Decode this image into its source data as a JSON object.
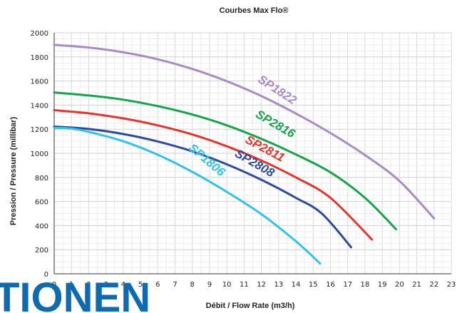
{
  "chart_data": {
    "type": "line",
    "title": "Courbes Max Flo®",
    "xlabel": "Débit / Flow Rate (m3/h)",
    "ylabel": "Pression / Pressure (millibar)",
    "xlim": [
      0,
      23
    ],
    "ylim": [
      0,
      2000
    ],
    "x_ticks": [
      0,
      1,
      2,
      3,
      4,
      5,
      6,
      7,
      8,
      9,
      10,
      11,
      12,
      13,
      14,
      15,
      16,
      17,
      18,
      19,
      20,
      21,
      22,
      23
    ],
    "y_ticks": [
      0,
      200,
      400,
      600,
      800,
      1000,
      1200,
      1400,
      1600,
      1800,
      2000
    ],
    "grid": true,
    "legend": "none",
    "series": [
      {
        "name": "SP1822",
        "color": "#a88bc4",
        "points": [
          [
            0,
            1900
          ],
          [
            2,
            1878
          ],
          [
            4,
            1838
          ],
          [
            6,
            1780
          ],
          [
            8,
            1700
          ],
          [
            10,
            1598
          ],
          [
            12,
            1475
          ],
          [
            14,
            1330
          ],
          [
            16,
            1168
          ],
          [
            18,
            985
          ],
          [
            20,
            770
          ],
          [
            22,
            460
          ]
        ]
      },
      {
        "name": "SP2816",
        "color": "#14a54b",
        "points": [
          [
            0,
            1505
          ],
          [
            2,
            1480
          ],
          [
            4,
            1445
          ],
          [
            6,
            1392
          ],
          [
            8,
            1322
          ],
          [
            10,
            1232
          ],
          [
            12,
            1120
          ],
          [
            14,
            990
          ],
          [
            16,
            842
          ],
          [
            18,
            630
          ],
          [
            19.8,
            370
          ]
        ]
      },
      {
        "name": "SP2811",
        "color": "#e5342b",
        "points": [
          [
            0,
            1358
          ],
          [
            2,
            1332
          ],
          [
            4,
            1290
          ],
          [
            6,
            1232
          ],
          [
            8,
            1156
          ],
          [
            10,
            1058
          ],
          [
            12,
            940
          ],
          [
            14,
            800
          ],
          [
            16,
            630
          ],
          [
            18.4,
            285
          ]
        ]
      },
      {
        "name": "SP2808",
        "color": "#2e4a9b",
        "points": [
          [
            0,
            1222
          ],
          [
            2,
            1202
          ],
          [
            4,
            1160
          ],
          [
            6,
            1098
          ],
          [
            8,
            1016
          ],
          [
            10,
            908
          ],
          [
            12,
            780
          ],
          [
            14,
            630
          ],
          [
            15.5,
            500
          ],
          [
            17.2,
            220
          ]
        ]
      },
      {
        "name": "SP1806",
        "color": "#2fc3ea",
        "points": [
          [
            0,
            1212
          ],
          [
            1,
            1205
          ],
          [
            2,
            1178
          ],
          [
            4,
            1100
          ],
          [
            6,
            988
          ],
          [
            8,
            846
          ],
          [
            10,
            680
          ],
          [
            12,
            495
          ],
          [
            14,
            270
          ],
          [
            15.4,
            85
          ]
        ]
      }
    ]
  },
  "watermark": {
    "text": "TIONEN"
  }
}
